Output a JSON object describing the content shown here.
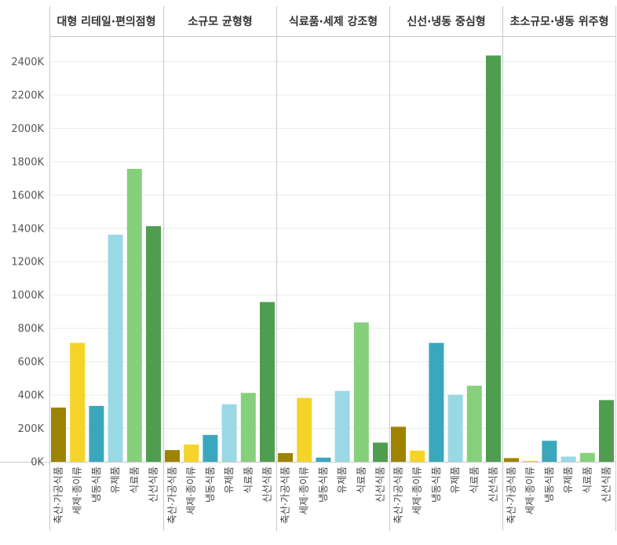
{
  "chart_data": {
    "type": "bar",
    "panels": [
      {
        "title": "대형 리테일·편의점형",
        "categories": [
          "축산·가공식품",
          "세제·종이류",
          "냉동식품",
          "유제품",
          "식료품",
          "신선식품"
        ],
        "values": [
          325,
          713,
          335,
          1362,
          1757,
          1413
        ]
      },
      {
        "title": "소규모 균형형",
        "categories": [
          "축산·가공식품",
          "세제·종이류",
          "냉동식품",
          "유제품",
          "식료품",
          "신선식품"
        ],
        "values": [
          70,
          103,
          161,
          345,
          413,
          958
        ]
      },
      {
        "title": "식료품·세제 강조형",
        "categories": [
          "축산·가공식품",
          "세제·종이류",
          "냉동식품",
          "유제품",
          "식료품",
          "신선식품"
        ],
        "values": [
          52,
          383,
          25,
          425,
          836,
          115
        ]
      },
      {
        "title": "신선·냉동 중심형",
        "categories": [
          "축산·가공식품",
          "세제·종이류",
          "냉동식품",
          "유제품",
          "식료품",
          "신선식품"
        ],
        "values": [
          210,
          67,
          713,
          402,
          456,
          2437
        ]
      },
      {
        "title": "초소규모·냉동 위주형",
        "categories": [
          "축산·가공식품",
          "세제·종이류",
          "냉동식품",
          "유제품",
          "식료품",
          "신선식품"
        ],
        "values": [
          22,
          4,
          126,
          31,
          53,
          370
        ]
      }
    ],
    "category_colors": {
      "축산·가공식품": "#9e8300",
      "세제·종이류": "#f6d328",
      "냉동식품": "#3ba7bc",
      "유제품": "#9ad8e6",
      "식료품": "#86d07b",
      "신선식품": "#4f9e50"
    },
    "y_ticks": [
      0,
      200,
      400,
      600,
      800,
      1000,
      1200,
      1400,
      1600,
      1800,
      2000,
      2200,
      2400
    ],
    "y_tick_labels": [
      "0K",
      "200K",
      "400K",
      "600K",
      "800K",
      "1000K",
      "1200K",
      "1400K",
      "1600K",
      "1800K",
      "2000K",
      "2200K",
      "2400K"
    ],
    "ylim": [
      0,
      2550
    ],
    "unit": "K",
    "grid": true,
    "legend": "none"
  }
}
